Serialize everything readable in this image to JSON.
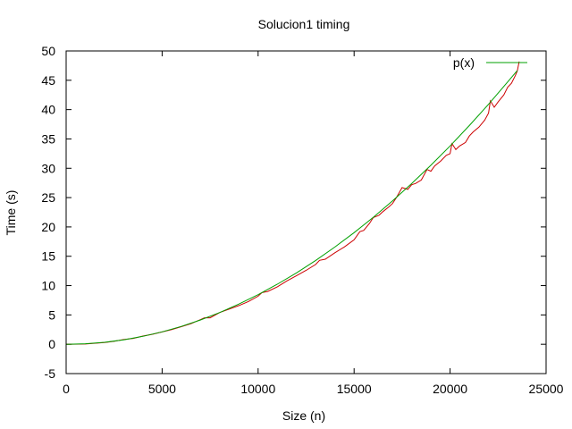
{
  "chart_data": {
    "type": "line",
    "title": "Solucion1 timing",
    "xlabel": "Size (n)",
    "ylabel": "Time (s)",
    "xlim": [
      0,
      25000
    ],
    "ylim": [
      -5,
      50
    ],
    "xticks": [
      0,
      5000,
      10000,
      15000,
      20000,
      25000
    ],
    "yticks": [
      -5,
      0,
      5,
      10,
      15,
      20,
      25,
      30,
      35,
      40,
      45,
      50
    ],
    "grid": false,
    "legend": {
      "position": "top-right",
      "entries": [
        "p(x)"
      ]
    },
    "series": [
      {
        "color": "#cc0000",
        "x": [
          0,
          1000,
          2000,
          2500,
          3000,
          3500,
          4000,
          4500,
          5000,
          5500,
          6000,
          6500,
          7000,
          7200,
          7500,
          8000,
          8500,
          9000,
          9500,
          10000,
          10200,
          10500,
          11000,
          11500,
          12000,
          12500,
          13000,
          13200,
          13500,
          14000,
          14500,
          15000,
          15300,
          15500,
          15800,
          16000,
          16300,
          16500,
          16800,
          17000,
          17200,
          17500,
          17800,
          18000,
          18200,
          18500,
          18800,
          19000,
          19200,
          19500,
          19800,
          20000,
          20100,
          20300,
          20500,
          20800,
          21000,
          21200,
          21500,
          21800,
          22000,
          22100,
          22300,
          22500,
          22800,
          23000,
          23200,
          23400,
          23500,
          23600
        ],
        "y": [
          0,
          0.05,
          0.3,
          0.5,
          0.8,
          1.0,
          1.4,
          1.7,
          2.1,
          2.5,
          3.0,
          3.5,
          4.2,
          4.5,
          4.5,
          5.4,
          6.0,
          6.6,
          7.3,
          8.2,
          8.8,
          9.0,
          9.8,
          10.8,
          11.7,
          12.6,
          13.6,
          14.3,
          14.5,
          15.6,
          16.6,
          17.8,
          19.2,
          19.4,
          20.6,
          21.6,
          22.0,
          22.6,
          23.4,
          24.0,
          25.0,
          26.7,
          26.4,
          27.2,
          27.4,
          28.0,
          29.8,
          29.5,
          30.4,
          31.2,
          32.2,
          32.5,
          34.2,
          33.2,
          33.8,
          34.4,
          35.5,
          36.2,
          37.0,
          38.2,
          39.4,
          41.5,
          40.4,
          41.3,
          42.5,
          43.8,
          44.5,
          45.8,
          46.6,
          48.2
        ]
      },
      {
        "name": "p(x)",
        "color": "#00a000",
        "x": [
          0,
          1000,
          2000,
          3000,
          4000,
          5000,
          6000,
          7000,
          8000,
          9000,
          10000,
          11000,
          12000,
          13000,
          14000,
          15000,
          16000,
          17000,
          18000,
          19000,
          20000,
          21000,
          22000,
          23000,
          23500
        ],
        "y": [
          0,
          0.09,
          0.34,
          0.76,
          1.35,
          2.11,
          3.04,
          4.14,
          5.41,
          6.85,
          8.45,
          10.23,
          12.17,
          14.29,
          16.57,
          19.02,
          21.64,
          24.43,
          27.39,
          30.52,
          33.81,
          37.28,
          40.91,
          44.72,
          46.67
        ]
      }
    ]
  }
}
